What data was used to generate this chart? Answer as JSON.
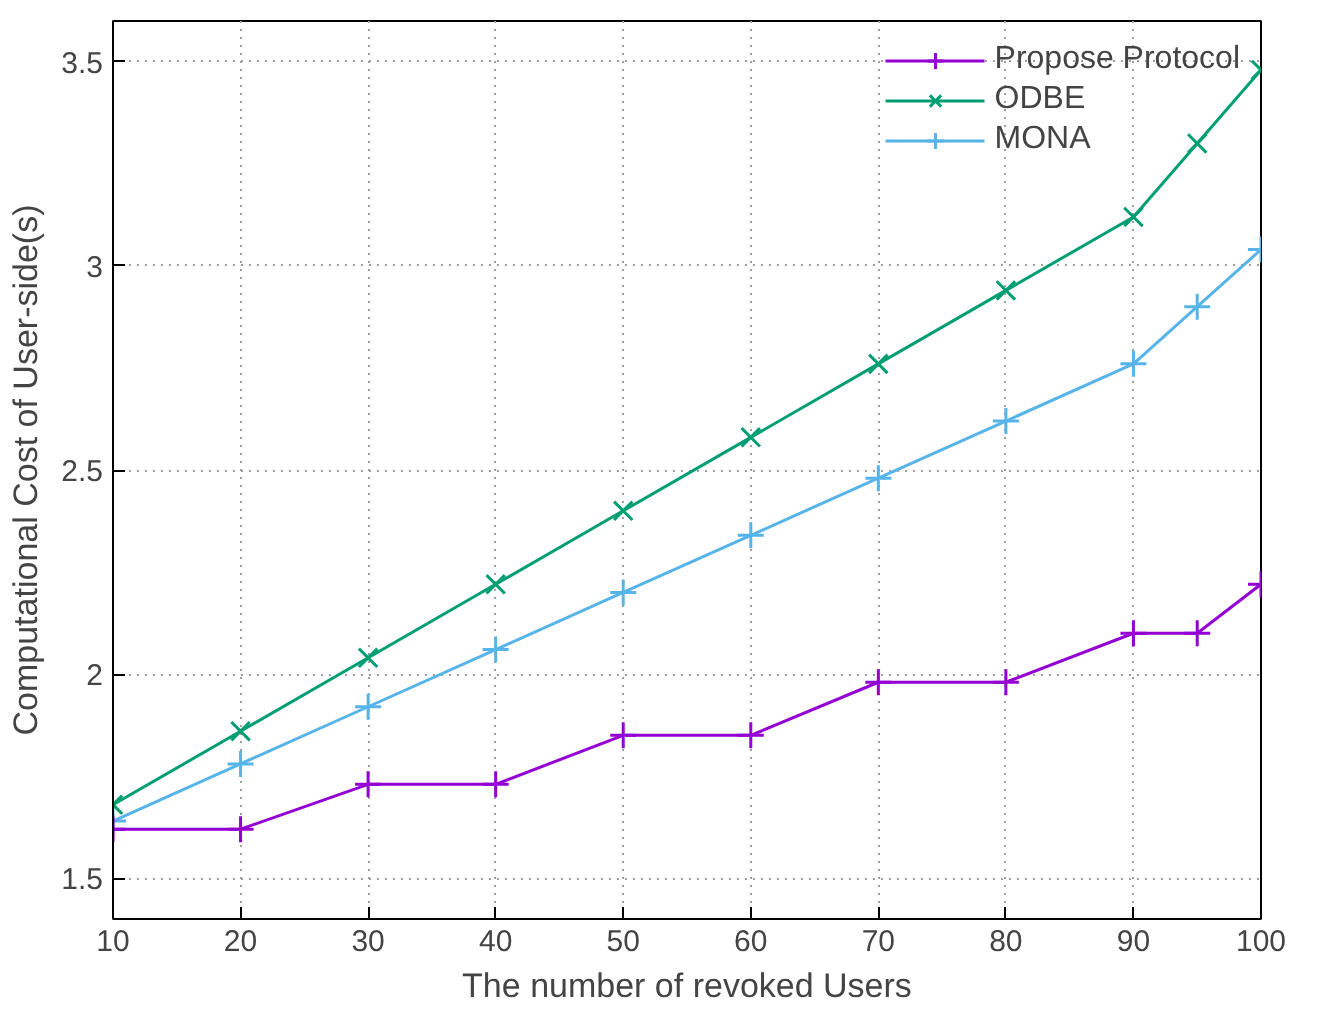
{
  "chart_data": {
    "type": "line",
    "xlabel": "The number of revoked Users",
    "ylabel": "Computational Cost of User-side(s)",
    "x": [
      10,
      20,
      30,
      40,
      50,
      60,
      70,
      80,
      90,
      95,
      100
    ],
    "series": [
      {
        "name": "Propose Protocol",
        "color": "#9400d3",
        "marker": "cross",
        "values": [
          1.62,
          1.62,
          1.73,
          1.73,
          1.85,
          1.85,
          1.98,
          1.98,
          2.1,
          2.1,
          2.22
        ]
      },
      {
        "name": "ODBE",
        "color": "#009e73",
        "marker": "x",
        "values": [
          1.68,
          1.86,
          2.04,
          2.22,
          2.4,
          2.58,
          2.76,
          2.94,
          3.12,
          3.3,
          3.48
        ]
      },
      {
        "name": "MONA",
        "color": "#56b4e9",
        "marker": "cross",
        "values": [
          1.64,
          1.78,
          1.92,
          2.06,
          2.2,
          2.34,
          2.48,
          2.62,
          2.76,
          2.9,
          3.04
        ]
      }
    ],
    "xlim": [
      10,
      100
    ],
    "ylim": [
      1.4,
      3.6
    ],
    "xticks": [
      10,
      20,
      30,
      40,
      50,
      60,
      70,
      80,
      90,
      100
    ],
    "yticks": [
      1.5,
      2,
      2.5,
      3,
      3.5
    ],
    "grid": true,
    "legend": "top right",
    "line_style": "solid"
  }
}
